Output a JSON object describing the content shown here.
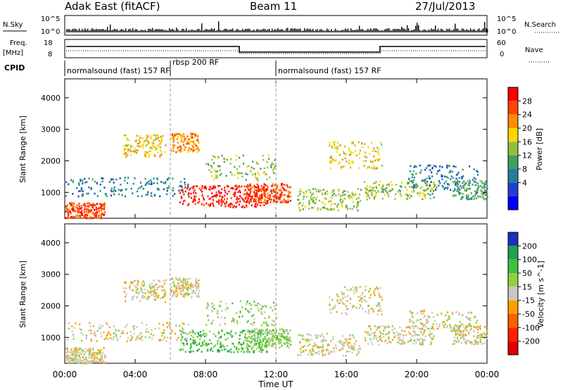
{
  "header": {
    "station": "Adak East (fitACF)",
    "beam": "Beam 11",
    "date": "27/Jul/2013"
  },
  "labels": {
    "nsky": "N.Sky",
    "nsearch": "N.Search",
    "freq": "Freq.",
    "freq_unit": "[MHz]",
    "nave": "Nave",
    "cpid": "CPID"
  },
  "ticks": {
    "noise_left": [
      "10^5",
      "10^0"
    ],
    "noise_right": [
      "10^5",
      "10^0"
    ],
    "freq_left": [
      "18",
      "8"
    ],
    "freq_right": [
      "60",
      "0"
    ]
  },
  "cpid_segments": [
    {
      "label": "normalsound (fast) 157 RF",
      "start_hour": 0,
      "end_hour": 6
    },
    {
      "label": "rbsp 200 RF",
      "start_hour": 6,
      "end_hour": 12
    },
    {
      "label": "normalsound (fast) 157 RF",
      "start_hour": 12,
      "end_hour": 24
    }
  ],
  "chart_data": [
    {
      "type": "heatmap",
      "panel": "power",
      "ylabel": "Slant Range [km]",
      "xlabel": "",
      "ylim": [
        180,
        4600
      ],
      "xlim": [
        0,
        24
      ],
      "yticks": [
        "1000",
        "2000",
        "3000",
        "4000"
      ],
      "colorbar": {
        "label": "Power [dB]",
        "ticks": [
          "28",
          "24",
          "20",
          "16",
          "12",
          "8",
          "4"
        ],
        "colors": [
          "#ff0000",
          "#ff4500",
          "#ff8c00",
          "#ffd700",
          "#90c040",
          "#40a060",
          "#2080a0",
          "#2040d0",
          "#0000ff"
        ]
      }
    },
    {
      "type": "heatmap",
      "panel": "velocity",
      "ylabel": "Slant Range [km]",
      "xlabel": "Time UT",
      "ylim": [
        180,
        4600
      ],
      "xlim": [
        0,
        24
      ],
      "yticks": [
        "1000",
        "2000",
        "3000",
        "4000"
      ],
      "xticks": [
        "00:00",
        "04:00",
        "08:00",
        "12:00",
        "16:00",
        "20:00",
        "00:00"
      ],
      "colorbar": {
        "label": "Velocity [m s^-1]",
        "ticks": [
          "200",
          "100",
          "50",
          "15",
          "-15",
          "-50",
          "-100",
          "-200"
        ],
        "colors": [
          "#1a2fc0",
          "#20a050",
          "#40c040",
          "#90d040",
          "#c8c8c0",
          "#ffa000",
          "#ff6000",
          "#ff2000",
          "#e00000"
        ]
      }
    }
  ]
}
